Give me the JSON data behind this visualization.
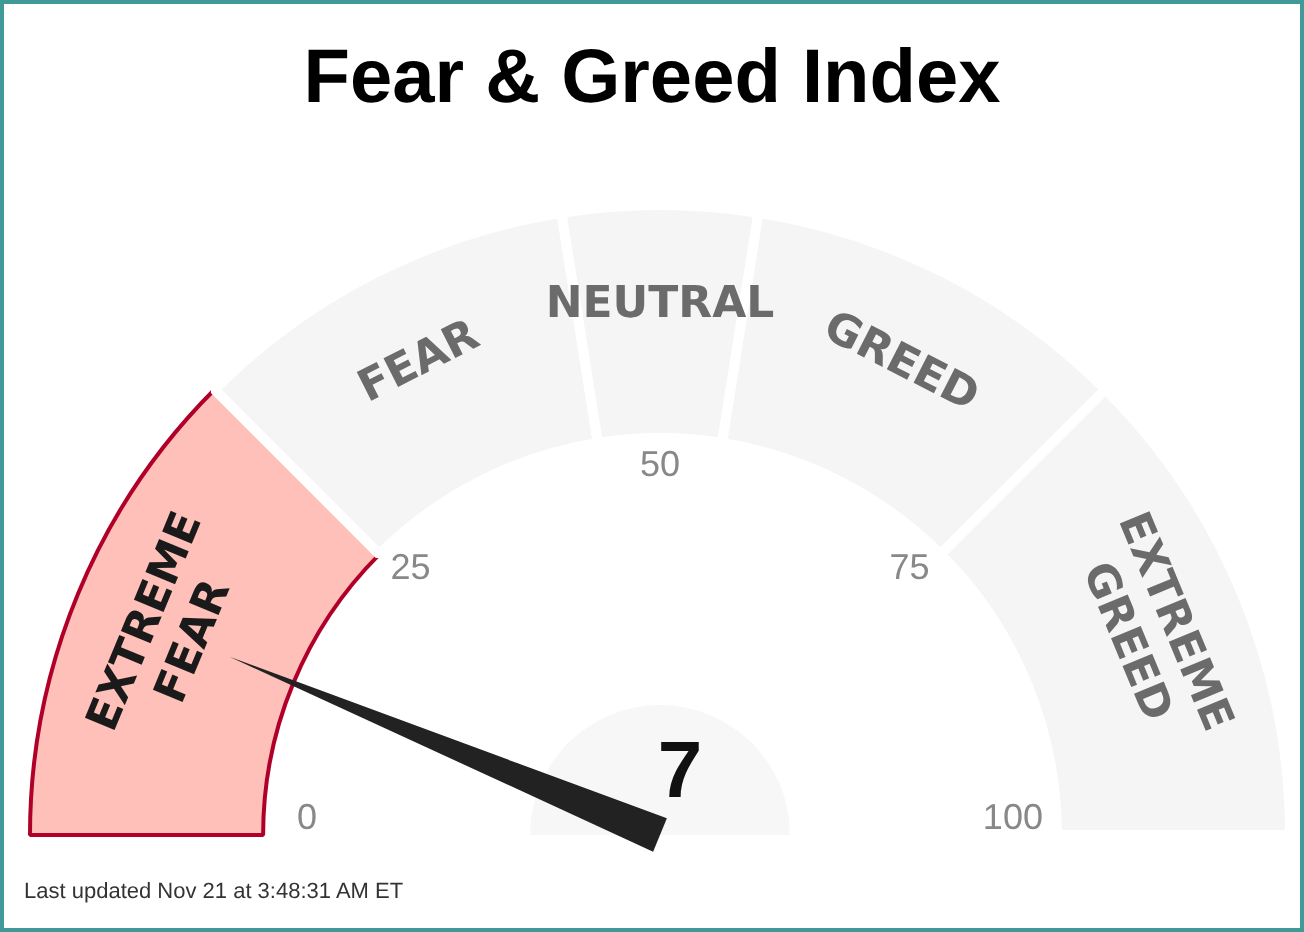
{
  "chart_data": {
    "type": "donut",
    "title": "Fear & Greed Index",
    "categories": [
      "EXTREME FEAR",
      "FEAR",
      "NEUTRAL",
      "GREED",
      "EXTREME GREED"
    ],
    "values": [
      25,
      20,
      10,
      20,
      25
    ],
    "colors": [
      "#fec0b8",
      "#f5f5f5",
      "#f5f5f5",
      "#f5f5f5",
      "#f5f5f5"
    ],
    "needle": "EXTREME FEAR",
    "legend": false,
    "annotations": [
      "7",
      "0",
      "25",
      "50",
      "75",
      "100",
      "Last updated Nov 21 at 3:48:31 AM ET"
    ]
  }
}
